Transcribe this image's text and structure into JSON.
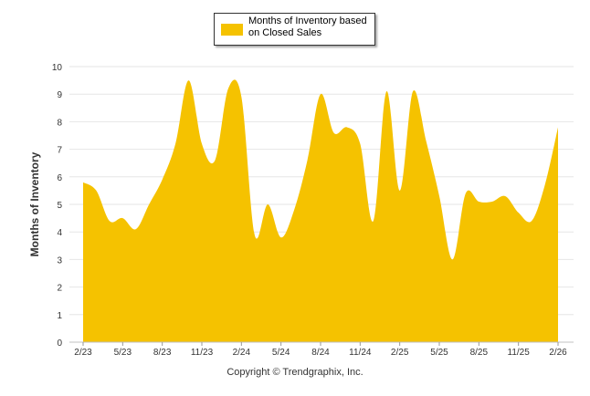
{
  "colors": {
    "area_fill": "#f5c200",
    "grid": "#e6e6e6",
    "axis_text": "#333333"
  },
  "footer": {
    "copyright": "Copyright © Trendgraphix, Inc."
  },
  "chart_data": {
    "type": "area",
    "title": "",
    "xlabel": "",
    "ylabel": "Months of Inventory",
    "ylim": [
      0,
      10
    ],
    "y_ticks": [
      0,
      1,
      2,
      3,
      4,
      5,
      6,
      7,
      8,
      9,
      10
    ],
    "x_tick_labels": [
      "2/23",
      "5/23",
      "8/23",
      "11/23",
      "2/24",
      "5/24",
      "8/24",
      "11/24",
      "2/25",
      "5/25",
      "8/25",
      "11/25",
      "2/26"
    ],
    "grid": true,
    "legend_position": "top-center",
    "x": [
      "2/23",
      "3/23",
      "4/23",
      "5/23",
      "6/23",
      "7/23",
      "8/23",
      "9/23",
      "10/23",
      "11/23",
      "12/23",
      "1/24",
      "2/24",
      "3/24",
      "4/24",
      "5/24",
      "6/24",
      "7/24",
      "8/24",
      "9/24",
      "10/24",
      "11/24",
      "12/24",
      "1/25",
      "2/25",
      "3/25",
      "4/25",
      "5/25",
      "6/25",
      "7/25",
      "8/25",
      "9/25",
      "10/25",
      "11/25",
      "12/25",
      "1/26",
      "2/26"
    ],
    "series": [
      {
        "name": "Months of Inventory based on Closed Sales",
        "values": [
          5.8,
          5.5,
          4.4,
          4.5,
          4.1,
          5.0,
          5.9,
          7.2,
          9.5,
          7.2,
          6.6,
          9.2,
          8.9,
          3.9,
          5.0,
          3.8,
          4.8,
          6.6,
          9.0,
          7.6,
          7.8,
          7.2,
          4.4,
          9.1,
          5.5,
          9.1,
          7.3,
          5.3,
          3.0,
          5.4,
          5.1,
          5.1,
          5.3,
          4.7,
          4.4,
          5.7,
          7.8
        ]
      }
    ]
  }
}
